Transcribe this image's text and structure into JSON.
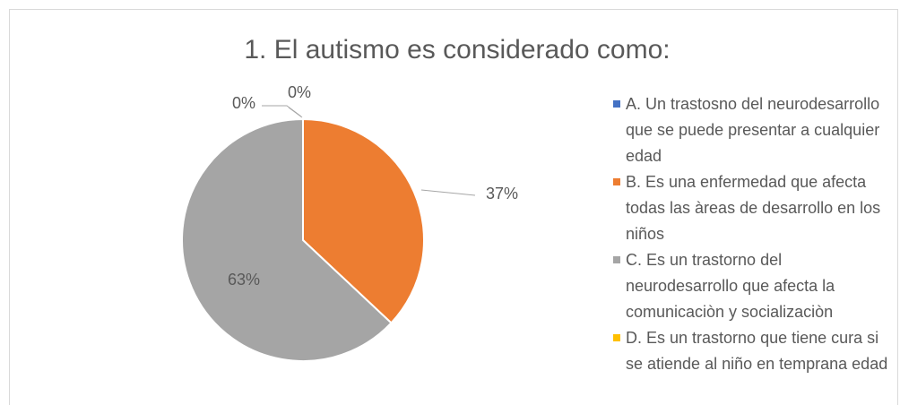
{
  "chart_data": {
    "type": "pie",
    "title": "1. El autismo es considerado como:",
    "categories": [
      "A. Un trastosno del neurodesarrollo que se puede presentar a cualquier edad",
      "B. Es una enfermedad que afecta todas las àreas de desarrollo en los niños",
      "C. Es un trastorno del neurodesarrollo que afecta la comunicaciòn y socializaciòn",
      "D. Es un trastorno que tiene cura si se atiende al niño en temprana edad"
    ],
    "values": [
      0,
      37,
      63,
      0
    ],
    "value_labels": [
      "0%",
      "37%",
      "63%",
      "0%"
    ],
    "colors": [
      "#4472c4",
      "#ed7d31",
      "#a5a5a5",
      "#ffc000"
    ],
    "legend": "right"
  }
}
